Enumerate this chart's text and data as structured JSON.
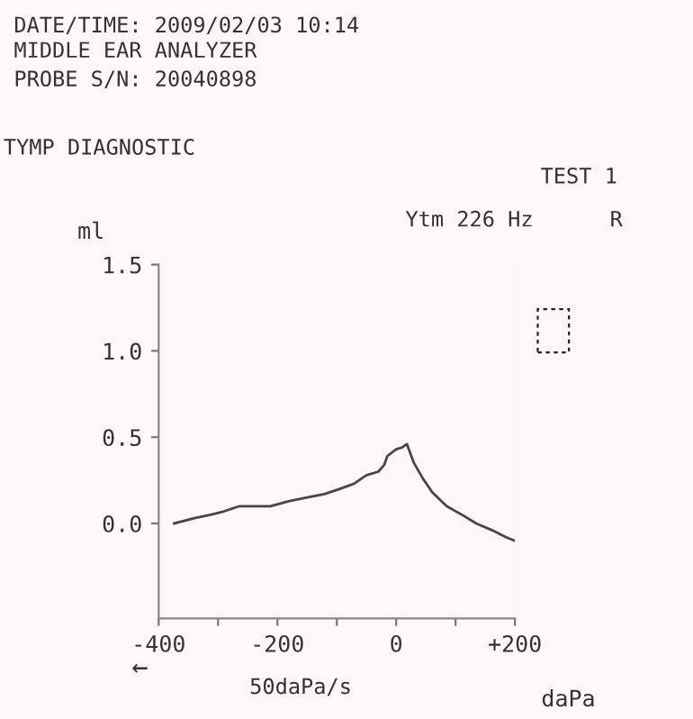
{
  "chart_data": {
    "type": "line",
    "title": "TYMP DIAGNOSTIC",
    "subtitle": "Ytm 226 Hz",
    "xlabel": "daPa",
    "ylabel": "ml",
    "annotations": [
      "DATE/TIME: 2009/02/03 10:14",
      "MIDDLE EAR ANALYZER",
      "PROBE S/N: 20040898",
      "TEST 1",
      "R",
      "←",
      "50daPa/s"
    ],
    "series": [
      {
        "color": "#4a4444",
        "x": [
          -374,
          -340,
          -313,
          -290,
          -264,
          -240,
          -212,
          -180,
          -150,
          -121,
          -95,
          -71,
          -50,
          -30,
          -20,
          -15,
          0,
          10,
          18,
          30,
          45,
          61,
          85,
          111,
          135,
          162,
          185,
          200
        ],
        "values": [
          0.0,
          0.03,
          0.05,
          0.07,
          0.1,
          0.1,
          0.1,
          0.13,
          0.15,
          0.17,
          0.2,
          0.23,
          0.28,
          0.3,
          0.34,
          0.39,
          0.43,
          0.44,
          0.46,
          0.35,
          0.26,
          0.18,
          0.1,
          0.05,
          0.0,
          -0.04,
          -0.08,
          -0.1
        ]
      }
    ],
    "xlim": [
      -400,
      200
    ],
    "ylim": [
      -0.55,
      1.5
    ],
    "xticks": [
      -400,
      {
        "value": -300,
        "label": null
      },
      -200,
      {
        "value": -100,
        "label": null
      },
      0,
      {
        "value": 100,
        "label": null
      },
      {
        "value": 200,
        "label": "+200"
      }
    ],
    "yticks": [
      {
        "value": 0,
        "label": "0.0"
      },
      0.5,
      {
        "value": 1,
        "label": "1.0"
      },
      1.5
    ],
    "grid": false,
    "legend": false,
    "marker": "none",
    "line_style": "solid"
  }
}
